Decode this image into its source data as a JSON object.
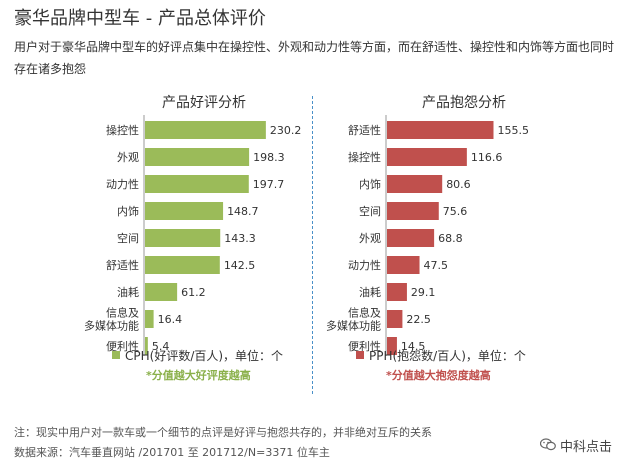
{
  "header": {
    "title": "豪华品牌中型车 - 产品总体评价",
    "description": "用户对于豪华品牌中型车的好评点集中在操控性、外观和动力性等方面，而在舒适性、操控性和内饰等方面也同时存在诸多抱怨"
  },
  "colors": {
    "positive": "#9bbb59",
    "negative": "#c0504d",
    "divider": "#4a90c8"
  },
  "chart_data": [
    {
      "type": "bar",
      "orientation": "horizontal",
      "title": "产品好评分析",
      "categories": [
        "操控性",
        "外观",
        "动力性",
        "内饰",
        "空间",
        "舒适性",
        "油耗",
        "信息及\n多媒体功能",
        "便利性"
      ],
      "values": [
        230.2,
        198.3,
        197.7,
        148.7,
        143.3,
        142.5,
        61.2,
        16.4,
        5.4
      ],
      "value_labels": [
        "230.2",
        "198.3",
        "197.7",
        "148.7",
        "143.3",
        "142.5",
        "61.2",
        "16.4",
        "5.4"
      ],
      "legend": "CPH(好评数/百人)，单位：个",
      "note": "*分值越大好评度越高",
      "color": "#9bbb59",
      "xlim": [
        0,
        240
      ]
    },
    {
      "type": "bar",
      "orientation": "horizontal",
      "title": "产品抱怨分析",
      "categories": [
        "舒适性",
        "操控性",
        "内饰",
        "空间",
        "外观",
        "动力性",
        "油耗",
        "信息及\n多媒体功能",
        "便利性"
      ],
      "values": [
        155.5,
        116.6,
        80.6,
        75.6,
        68.8,
        47.5,
        29.1,
        22.5,
        14.5
      ],
      "value_labels": [
        "155.5",
        "116.6",
        "80.6",
        "75.6",
        "68.8",
        "47.5",
        "29.1",
        "22.5",
        "14.5"
      ],
      "legend": "PPH(抱怨数/百人)，单位：个",
      "note": "*分值越大抱怨度越高",
      "color": "#c0504d",
      "xlim": [
        0,
        165
      ]
    }
  ],
  "footer": {
    "note": "注：现实中用户对一款车或一个细节的点评是好评与抱怨共存的，并非绝对互斥的关系",
    "source": "数据来源：汽车垂直网站 /201701 至 201712/N=3371 位车主"
  },
  "brand": {
    "icon": "wechat-icon",
    "name": "中科点击"
  }
}
